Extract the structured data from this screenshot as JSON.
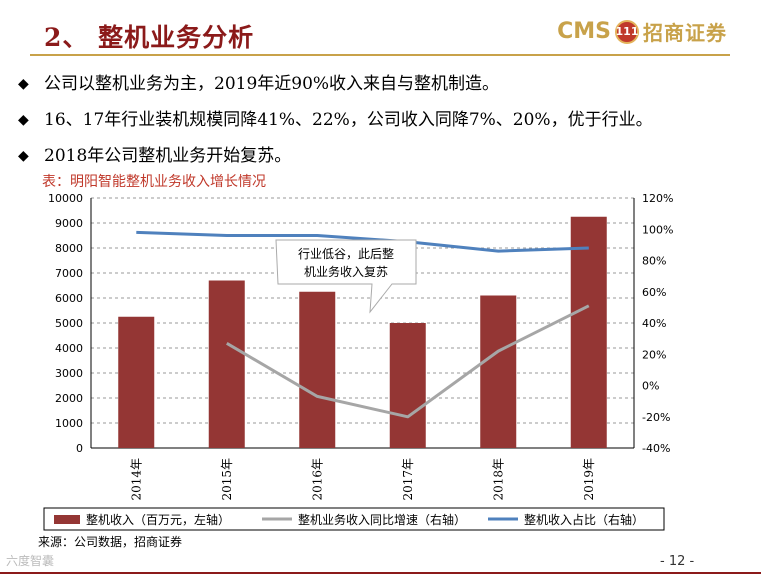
{
  "header": {
    "title": "2、 整机业务分析",
    "logo_latin": "CMS",
    "logo_seal": "111",
    "logo_cn": "招商证券"
  },
  "bullets": [
    "公司以整机业务为主，2019年近90%收入来自与整机制造。",
    "16、17年行业装机规模同降41%、22%，公司收入同降7%、20%，优于行业。",
    "2018年公司整机业务开始复苏。"
  ],
  "bullet_symbol": "◆",
  "caption": "表：明阳智能整机业务收入增长情况",
  "source": "来源：公司数据，招商证券",
  "page_number": "- 12 -",
  "watermark": "六度智囊",
  "colors": {
    "bar": "#943634",
    "growth_line": "#a6a6a6",
    "share_line": "#4f81bd",
    "title": "#8b1a1a",
    "accent": "#c8a24a"
  },
  "chart_data": {
    "type": "bar",
    "categories": [
      "2014年",
      "2015年",
      "2016年",
      "2017年",
      "2018年",
      "2019年"
    ],
    "series": [
      {
        "name": "整机收入（百万元，左轴）",
        "type": "bar",
        "axis": "left",
        "values": [
          5250,
          6700,
          6250,
          5000,
          6100,
          9250
        ]
      },
      {
        "name": "整机业务收入同比增速（右轴）",
        "type": "line",
        "axis": "right",
        "values": [
          null,
          27,
          -7,
          -20,
          22,
          51
        ]
      },
      {
        "name": "整机收入占比（右轴）",
        "type": "line",
        "axis": "right",
        "values": [
          98,
          96,
          96,
          92,
          86,
          88
        ]
      }
    ],
    "y_left": {
      "min": 0,
      "max": 10000,
      "step": 1000,
      "ticks": [
        "0",
        "1000",
        "2000",
        "3000",
        "4000",
        "5000",
        "6000",
        "7000",
        "8000",
        "9000",
        "10000"
      ]
    },
    "y_right": {
      "min": -40,
      "max": 120,
      "step": 20,
      "ticks": [
        "-40%",
        "-20%",
        "0%",
        "20%",
        "40%",
        "60%",
        "80%",
        "100%",
        "120%"
      ]
    },
    "gridlines": "horizontal dashed",
    "legend_position": "bottom",
    "annotation": [
      "行业低谷，此后整",
      "机业务收入复苏"
    ]
  }
}
